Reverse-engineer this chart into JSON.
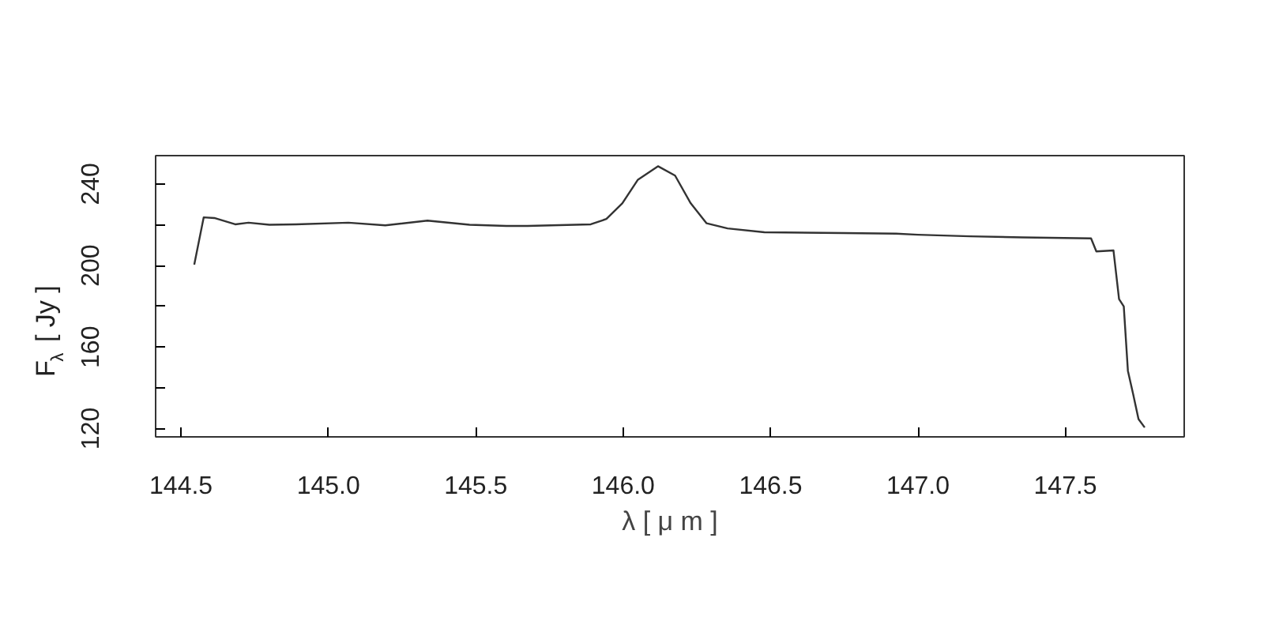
{
  "chart_data": {
    "type": "line",
    "xlabel": "λ [ μ m ]",
    "ylabel": "F$_{λ}$ [ Jy ]",
    "xlim": [
      144.414,
      147.903
    ],
    "ylim": [
      115.9,
      253.9
    ],
    "xticks": [
      {
        "value": 144.5,
        "label": "144.5"
      },
      {
        "value": 145.0,
        "label": "145.0"
      },
      {
        "value": 145.5,
        "label": "145.5"
      },
      {
        "value": 146.0,
        "label": "146.0"
      },
      {
        "value": 146.5,
        "label": "146.5"
      },
      {
        "value": 147.0,
        "label": "147.0"
      },
      {
        "value": 147.5,
        "label": "147.5"
      }
    ],
    "yticks": [
      120,
      {
        "value": 140,
        "label": null
      },
      160,
      {
        "value": 180,
        "label": null
      },
      200,
      {
        "value": 220,
        "label": null
      },
      240
    ],
    "grid": false,
    "marker": "none",
    "line_style": "solid",
    "series": [
      {
        "color": "#333333",
        "x": [
          144.545,
          144.577,
          144.613,
          144.684,
          144.729,
          144.8,
          144.89,
          145.068,
          145.193,
          145.336,
          145.479,
          145.604,
          145.675,
          145.89,
          145.943,
          145.997,
          146.05,
          146.118,
          146.176,
          146.229,
          146.283,
          146.354,
          146.479,
          146.747,
          146.926,
          147.0,
          147.176,
          147.355,
          147.587,
          147.605,
          147.663,
          147.682,
          147.698,
          147.712,
          147.73,
          147.748,
          147.769
        ],
        "values": [
          200.4,
          223.6,
          223.3,
          220.2,
          221.0,
          220.0,
          220.2,
          221.0,
          219.7,
          222.0,
          220.0,
          219.4,
          219.4,
          220.2,
          222.8,
          230.5,
          242.1,
          248.7,
          244.1,
          230.5,
          220.7,
          218.2,
          216.3,
          215.9,
          215.6,
          215.1,
          214.3,
          213.8,
          213.3,
          206.9,
          207.4,
          183.5,
          179.9,
          148.3,
          136.7,
          124.6,
          120.5
        ]
      }
    ]
  }
}
